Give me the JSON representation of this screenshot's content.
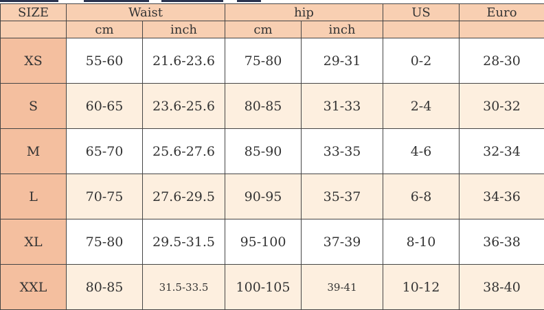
{
  "header": {
    "size": "SIZE",
    "waist": "Waist",
    "hip": "hip",
    "us": "US",
    "euro": "Euro",
    "cm": "cm",
    "inch": "inch"
  },
  "rows": [
    {
      "size": "XS",
      "waist_cm": "55-60",
      "waist_inch": "21.6-23.6",
      "hip_cm": "75-80",
      "hip_inch": "29-31",
      "us": "0-2",
      "euro": "28-30"
    },
    {
      "size": "S",
      "waist_cm": "60-65",
      "waist_inch": "23.6-25.6",
      "hip_cm": "80-85",
      "hip_inch": "31-33",
      "us": "2-4",
      "euro": "30-32"
    },
    {
      "size": "M",
      "waist_cm": "65-70",
      "waist_inch": "25.6-27.6",
      "hip_cm": "85-90",
      "hip_inch": "33-35",
      "us": "4-6",
      "euro": "32-34"
    },
    {
      "size": "L",
      "waist_cm": "70-75",
      "waist_inch": "27.6-29.5",
      "hip_cm": "90-95",
      "hip_inch": "35-37",
      "us": "6-8",
      "euro": "34-36"
    },
    {
      "size": "XL",
      "waist_cm": "75-80",
      "waist_inch": "29.5-31.5",
      "hip_cm": "95-100",
      "hip_inch": "37-39",
      "us": "8-10",
      "euro": "36-38"
    },
    {
      "size": "XXL",
      "waist_cm": "80-85",
      "waist_inch": "31.5-33.5",
      "hip_cm": "100-105",
      "hip_inch": "39-41",
      "us": "10-12",
      "euro": "38-40"
    }
  ],
  "colors": {
    "header": "#f8cfb2",
    "size_column": "#f4bf9f",
    "alt_row": "#fdefdf"
  }
}
